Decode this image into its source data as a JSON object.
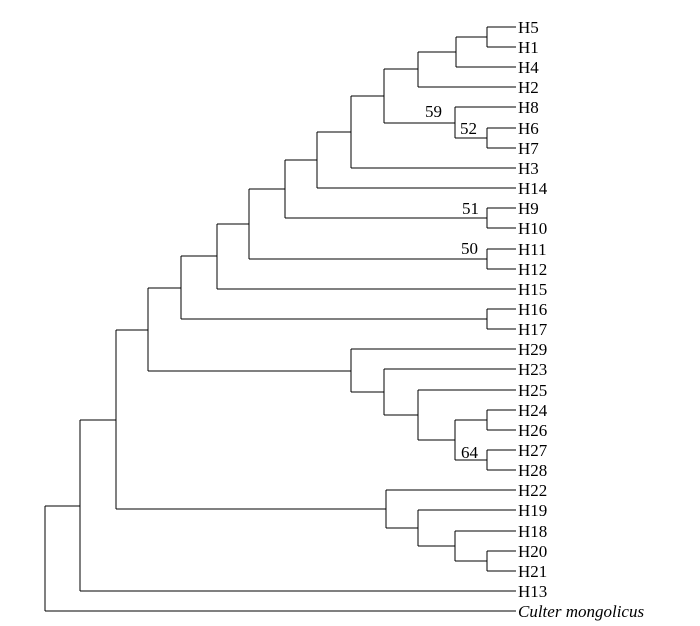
{
  "tree": {
    "leaves": [
      "H5",
      "H1",
      "H4",
      "H2",
      "H8",
      "H6",
      "H7",
      "H3",
      "H14",
      "H9",
      "H10",
      "H11",
      "H12",
      "H15",
      "H16",
      "H17",
      "H29",
      "H23",
      "H25",
      "H24",
      "H26",
      "H27",
      "H28",
      "H22",
      "H19",
      "H18",
      "H20",
      "H21",
      "H13",
      "Culter mongolicus"
    ],
    "outgroup": "Culter mongolicus",
    "bootstrap": [
      {
        "id": "b59",
        "value": "59"
      },
      {
        "id": "b52",
        "value": "52"
      },
      {
        "id": "b51",
        "value": "51"
      },
      {
        "id": "b50",
        "value": "50"
      },
      {
        "id": "b64",
        "value": "64"
      }
    ]
  }
}
